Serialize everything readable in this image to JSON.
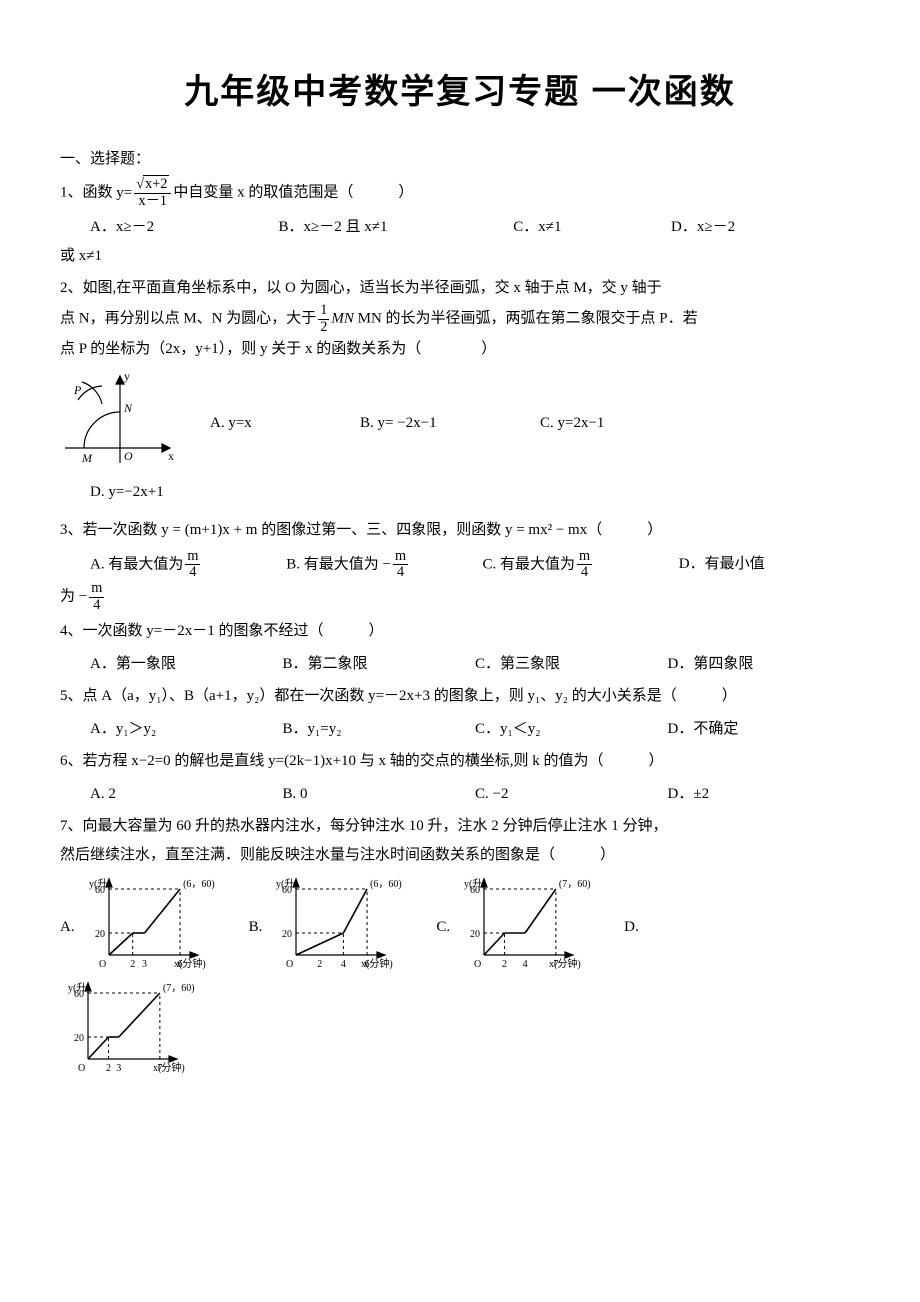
{
  "title": "九年级中考数学复习专题 一次函数",
  "section1": "一、选择题：",
  "q1": {
    "stem_pre": "1、函数",
    "stem_post": "中自变量 x 的取值范围是（　　　）",
    "A": "A．x≥－2",
    "B": "B．x≥－2 且 x≠1",
    "C": "C．x≠1",
    "D_prefix": "D．x≥－2",
    "D_cont": "或 x≠1"
  },
  "q2": {
    "line1": "2、如图,在平面直角坐标系中，以 O 为圆心，适当长为半径画弧，交 x 轴于点 M，交 y 轴于",
    "line2a": "点 N，再分别以点 M、N 为圆心，大于",
    "line2b": " MN 的长为半径画弧，两弧在第二象限交于点 P．若",
    "line3": "点 P 的坐标为（2x，y+1），则 y 关于 x 的函数关系为（　　　　）",
    "A": "A. y=x",
    "B": "B. y= −2x−1",
    "C": "C. y=2x−1",
    "D": "D. y=−2x+1",
    "frac_num": "1",
    "frac_den": "2",
    "fig": {
      "labels": {
        "y": "y",
        "x": "x",
        "P": "P",
        "N": "N",
        "M": "M",
        "O": "O"
      },
      "stroke": "#000000",
      "axis_width": 1.2
    }
  },
  "q3": {
    "stem": "3、若一次函数 y = (m+1)x + m 的图像过第一、三、四象限，则函数 y = mx² − mx（　　　）",
    "A_pre": "A. 有最大值为",
    "B_pre": "B. 有最大值为 −",
    "C_pre": "C. 有最大值为",
    "D_pre": "D．有最小值",
    "D_cont": "为 −",
    "frac_num": "m",
    "frac_den": "4"
  },
  "q4": {
    "stem": "4、一次函数 y=－2x－1 的图象不经过（　　　）",
    "A": "A．第一象限",
    "B": "B．第二象限",
    "C": "C．第三象限",
    "D": "D．第四象限"
  },
  "q5": {
    "stem": "5、点 A（a，y₁）、B（a+1，y₂）都在一次函数 y=－2x+3 的图象上，则 y₁、y₂ 的大小关系是（　　　）",
    "A": "A．y₁＞y₂",
    "B": "B．y₁=y₂",
    "C": "C．y₁＜y₂",
    "D": "D．不确定"
  },
  "q6": {
    "stem": "6、若方程 x−2=0 的解也是直线 y=(2k−1)x+10 与 x 轴的交点的横坐标,则 k 的值为（　　　）",
    "A": "A. 2",
    "B": "B. 0",
    "C": "C. −2",
    "D": "D．±2"
  },
  "q7": {
    "line1": "7、向最大容量为 60 升的热水器内注水，每分钟注水 10 升，注水 2 分钟后停止注水 1 分钟，",
    "line2": "然后继续注水，直至注满．则能反映注水量与注水时间函数关系的图象是（　　　）",
    "A": "A.",
    "B": "B.",
    "C": "C.",
    "D": "D.",
    "chart_common": {
      "y_label": "y(升)",
      "x_label": "x(分钟)",
      "y_max": 60,
      "y_tick": 20,
      "stroke": "#000000",
      "dash": "3,3",
      "axis_width": 1.2,
      "curve_width": 1.6,
      "width": 150,
      "height": 100
    },
    "charts": {
      "A": {
        "end_label": "(6，60)",
        "x_ticks": [
          "2",
          "3",
          "6"
        ],
        "x_tick_pos": [
          2,
          3,
          6
        ],
        "xmax": 6.5,
        "segments": [
          [
            0,
            0,
            2,
            20
          ],
          [
            2,
            20,
            3,
            20
          ],
          [
            3,
            20,
            6,
            60
          ]
        ]
      },
      "B": {
        "end_label": "(6，60)",
        "x_ticks": [
          "2",
          "4",
          "6"
        ],
        "x_tick_pos": [
          2,
          4,
          6
        ],
        "xmax": 6.5,
        "segments": [
          [
            0,
            0,
            4,
            20
          ],
          [
            4,
            20,
            6,
            60
          ]
        ]
      },
      "C": {
        "end_label": "(7，60)",
        "x_ticks": [
          "2",
          "4",
          "7"
        ],
        "x_tick_pos": [
          2,
          4,
          7
        ],
        "xmax": 7.5,
        "segments": [
          [
            0,
            0,
            2,
            20
          ],
          [
            2,
            20,
            4,
            20
          ],
          [
            4,
            20,
            7,
            60
          ]
        ]
      },
      "D": {
        "end_label": "(7，60)",
        "x_ticks": [
          "2",
          "3",
          "7"
        ],
        "x_tick_pos": [
          2,
          3,
          7
        ],
        "xmax": 7.5,
        "segments": [
          [
            0,
            0,
            2,
            20
          ],
          [
            2,
            20,
            3,
            20
          ],
          [
            3,
            20,
            7,
            60
          ]
        ]
      }
    }
  }
}
